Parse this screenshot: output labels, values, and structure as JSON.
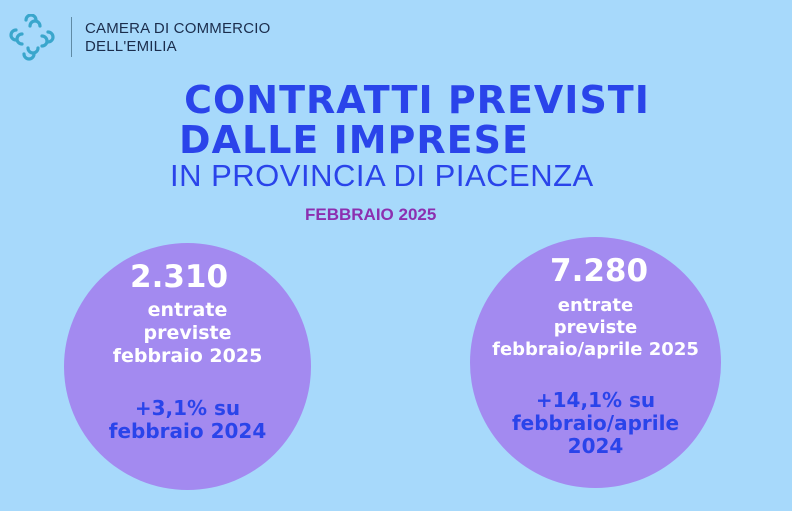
{
  "header": {
    "org_line1": "CAMERA DI COMMERCIO",
    "org_line2": "DELL'EMILIA",
    "logo_color": "#3aa6cc"
  },
  "title": {
    "line1": "CONTRATTI PREVISTI",
    "line2": "DALLE IMPRESE",
    "line3": "IN PROVINCIA DI PIACENZA",
    "period": "FEBBRAIO 2025"
  },
  "stats": [
    {
      "number": "2.310",
      "label_lines": [
        "entrate",
        "previste",
        "febbraio 2025"
      ],
      "comparison_lines": [
        "+3,1% su",
        "febbraio 2024"
      ]
    },
    {
      "number": "7.280",
      "label_lines": [
        "entrate",
        "previste",
        "febbraio/aprile 2025"
      ],
      "comparison_lines": [
        "+14,1% su",
        "febbraio/aprile",
        "2024"
      ]
    }
  ],
  "colors": {
    "background": "#a7d9fb",
    "title_blue": "#2a44ea",
    "date_purple": "#8c2fb0",
    "circle": "#a38af0"
  }
}
